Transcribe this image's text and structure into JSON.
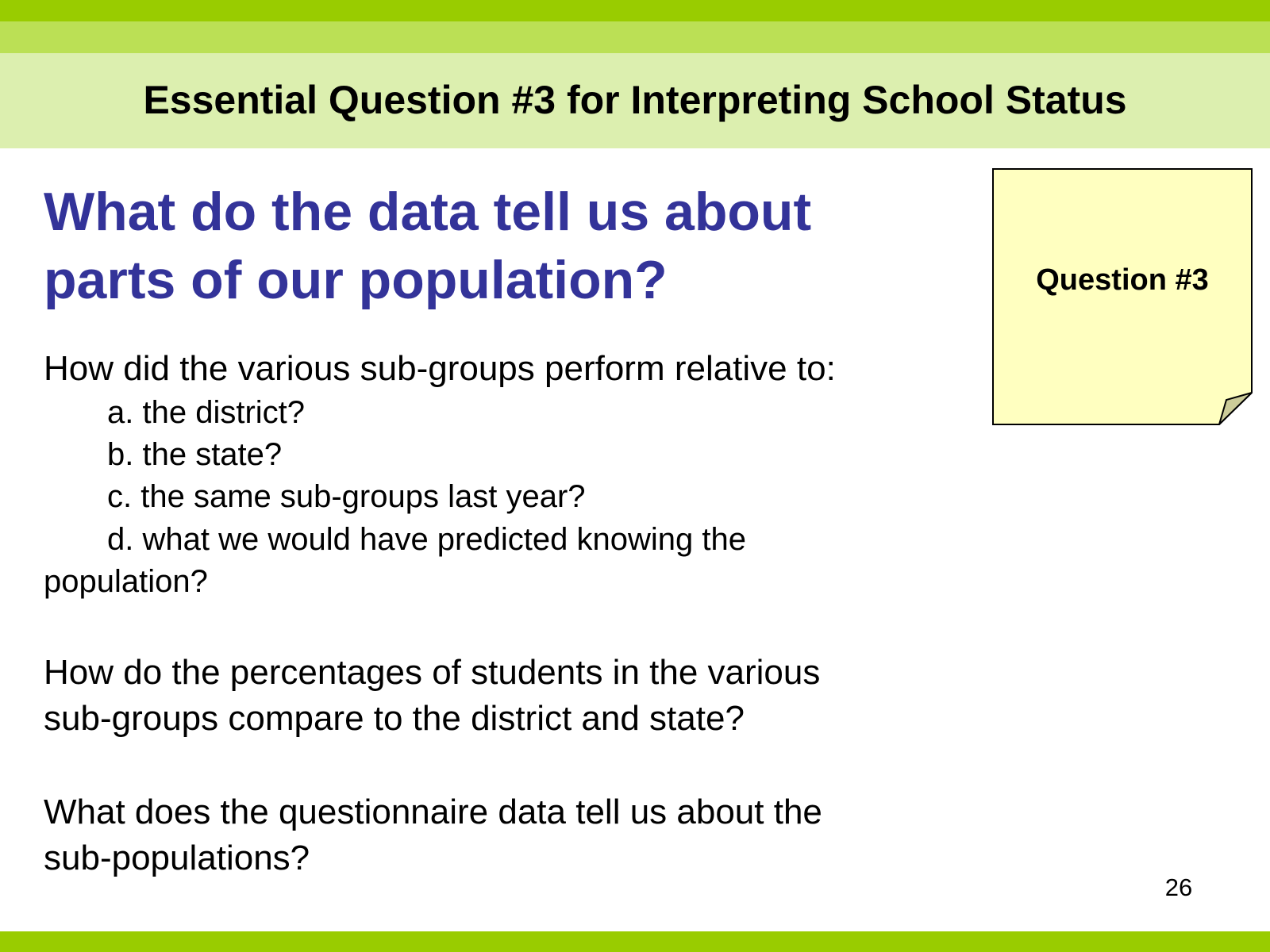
{
  "header": {
    "title": "Essential Question #3 for Interpreting School Status"
  },
  "main": {
    "heading_line1": "What do the data tell us about",
    "heading_line2": "parts of our population?",
    "q1_intro": "How did the various sub-groups perform relative to:",
    "q1_items": [
      "a. the district?",
      "b. the state?",
      "c. the same sub-groups last year?",
      "d. what we would have predicted knowing the"
    ],
    "q1_item_d_continuation": "population?",
    "q2_line1": "How do the percentages of students in the various",
    "q2_line2": "sub-groups compare to the district and state?",
    "q3_line1": "What does the questionnaire data tell us about the",
    "q3_line2": "sub-populations?"
  },
  "sticky_note": {
    "label": "Question #3",
    "fill_color": "#ffffc0",
    "fold_color": "#cccc99"
  },
  "footer": {
    "page_number": "26"
  },
  "colors": {
    "band_top": "#99cc00",
    "band_mid": "#bbe055",
    "header_band": "#dcefaf",
    "heading_text": "#333399"
  }
}
